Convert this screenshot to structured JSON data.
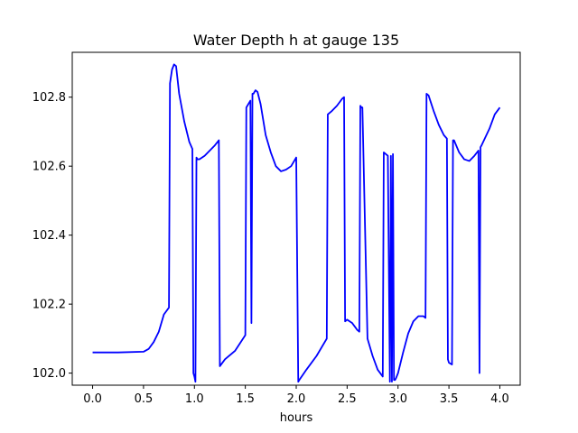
{
  "chart_data": {
    "type": "line",
    "title": "Water Depth h at gauge 135",
    "xlabel": "hours",
    "ylabel": "",
    "xlim": [
      -0.2,
      4.2
    ],
    "ylim": [
      101.965,
      102.93
    ],
    "xticks": [
      0.0,
      0.5,
      1.0,
      1.5,
      2.0,
      2.5,
      3.0,
      3.5,
      4.0
    ],
    "xtick_labels": [
      "0.0",
      "0.5",
      "1.0",
      "1.5",
      "2.0",
      "2.5",
      "3.0",
      "3.5",
      "4.0"
    ],
    "yticks": [
      102.0,
      102.2,
      102.4,
      102.6,
      102.8
    ],
    "ytick_labels": [
      "102.0",
      "102.2",
      "102.4",
      "102.6",
      "102.8"
    ],
    "grid": false,
    "series": [
      {
        "color": "#0000ff",
        "x": [
          0.0,
          0.25,
          0.5,
          0.55,
          0.6,
          0.65,
          0.7,
          0.75,
          0.76,
          0.78,
          0.8,
          0.82,
          0.85,
          0.9,
          0.95,
          0.98,
          0.99,
          1.0,
          1.01,
          1.02,
          1.03,
          1.05,
          1.1,
          1.15,
          1.2,
          1.24,
          1.25,
          1.3,
          1.4,
          1.5,
          1.51,
          1.52,
          1.55,
          1.56,
          1.57,
          1.58,
          1.6,
          1.62,
          1.65,
          1.7,
          1.75,
          1.8,
          1.85,
          1.9,
          1.95,
          1.98,
          2.0,
          2.02,
          2.03,
          2.1,
          2.2,
          2.3,
          2.31,
          2.35,
          2.4,
          2.45,
          2.47,
          2.48,
          2.5,
          2.55,
          2.6,
          2.62,
          2.63,
          2.64,
          2.65,
          2.7,
          2.75,
          2.8,
          2.85,
          2.86,
          2.88,
          2.9,
          2.92,
          2.93,
          2.94,
          2.95,
          2.96,
          2.97,
          2.98,
          3.0,
          3.05,
          3.1,
          3.15,
          3.2,
          3.25,
          3.27,
          3.28,
          3.3,
          3.35,
          3.4,
          3.45,
          3.48,
          3.49,
          3.5,
          3.53,
          3.54,
          3.55,
          3.6,
          3.65,
          3.7,
          3.75,
          3.79,
          3.8,
          3.81,
          3.82,
          3.9,
          3.95,
          4.0
        ],
        "y": [
          102.06,
          102.06,
          102.062,
          102.07,
          102.09,
          102.12,
          102.17,
          102.19,
          102.84,
          102.88,
          102.895,
          102.89,
          102.81,
          102.73,
          102.67,
          102.65,
          102.0,
          101.99,
          101.975,
          102.625,
          102.62,
          102.62,
          102.63,
          102.645,
          102.66,
          102.675,
          102.02,
          102.04,
          102.065,
          102.11,
          102.77,
          102.775,
          102.79,
          102.145,
          102.81,
          102.81,
          102.82,
          102.815,
          102.78,
          102.69,
          102.64,
          102.6,
          102.585,
          102.59,
          102.6,
          102.615,
          102.625,
          101.975,
          101.98,
          102.01,
          102.05,
          102.1,
          102.75,
          102.76,
          102.775,
          102.795,
          102.8,
          102.15,
          102.155,
          102.145,
          102.125,
          102.12,
          102.775,
          102.77,
          102.77,
          102.1,
          102.05,
          102.01,
          101.99,
          102.64,
          102.635,
          102.63,
          101.975,
          102.63,
          101.975,
          102.635,
          101.98,
          101.98,
          101.985,
          102.0,
          102.06,
          102.115,
          102.15,
          102.165,
          102.165,
          102.16,
          102.81,
          102.805,
          102.76,
          102.72,
          102.69,
          102.68,
          102.04,
          102.03,
          102.025,
          102.675,
          102.675,
          102.64,
          102.62,
          102.615,
          102.63,
          102.645,
          102.0,
          102.655,
          102.66,
          102.71,
          102.75,
          102.77
        ]
      }
    ]
  }
}
